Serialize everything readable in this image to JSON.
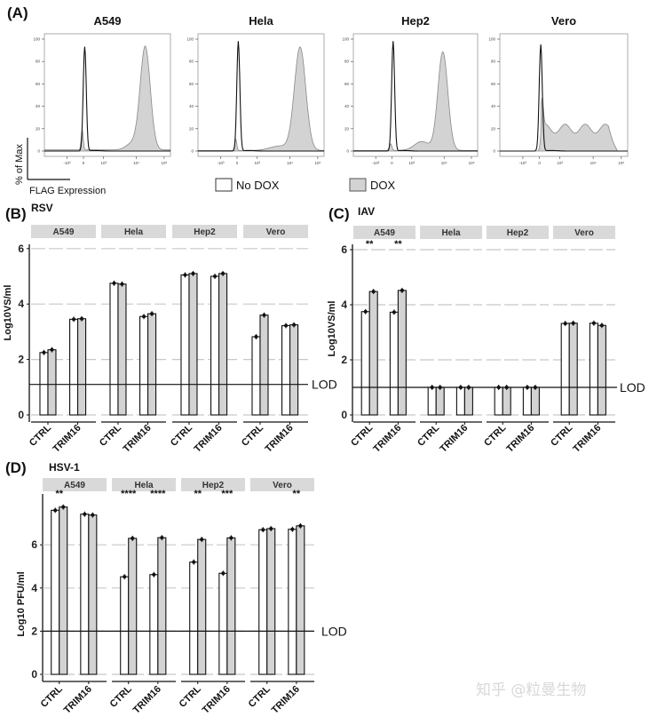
{
  "panel_a": {
    "letter": "(A)",
    "y_axis_label": "% of Max",
    "x_axis_label": "FLAG Expression",
    "legend": [
      {
        "label": "No DOX",
        "fill": "#ffffff"
      },
      {
        "label": "DOX",
        "fill": "#d3d3d3"
      }
    ],
    "y_ticks": [
      "0",
      "20",
      "40",
      "60",
      "80",
      "100"
    ],
    "x_ticks": [
      "-10³",
      "0",
      "10³",
      "10⁴",
      "10⁵"
    ]
  },
  "panel_b": {
    "letter": "(B)",
    "virus": "RSV",
    "lod_label": "LOD"
  },
  "panel_c": {
    "letter": "(C)",
    "virus": "IAV",
    "lod_label": "LOD"
  },
  "panel_d": {
    "letter": "(D)",
    "virus": "HSV-1",
    "lod_label": "LOD"
  },
  "watermark": "知乎 @粒曼生物",
  "colors": {
    "nodox": "#ffffff",
    "dox": "#d3d3d3",
    "strip": "#d9d9d9",
    "grid": "#c8c8c8"
  },
  "chart_data": [
    {
      "type": "area",
      "title": "A549",
      "xlabel": "FLAG Expression",
      "ylabel": "% of Max",
      "ylim": [
        0,
        100
      ],
      "x_scale": "biexponential",
      "series": [
        {
          "name": "No DOX",
          "peaks": [
            {
              "x": "0",
              "y": 93
            }
          ]
        },
        {
          "name": "DOX",
          "peaks": [
            {
              "x": "~3x10^4",
              "y": 95
            }
          ],
          "minor": [
            {
              "x": "0",
              "y": 18
            }
          ]
        }
      ]
    },
    {
      "type": "area",
      "title": "Hela",
      "ylim": [
        0,
        100
      ],
      "series": [
        {
          "name": "No DOX",
          "peaks": [
            {
              "x": "0",
              "y": 98
            }
          ]
        },
        {
          "name": "DOX",
          "peaks": [
            {
              "x": "~3x10^4",
              "y": 93
            }
          ],
          "minor": [
            {
              "x": "0",
              "y": 10
            }
          ]
        }
      ]
    },
    {
      "type": "area",
      "title": "Hep2",
      "ylim": [
        0,
        100
      ],
      "series": [
        {
          "name": "No DOX",
          "peaks": [
            {
              "x": "0",
              "y": 98
            }
          ]
        },
        {
          "name": "DOX",
          "peaks": [
            {
              "x": "~1x10^4",
              "y": 90
            }
          ],
          "minor": [
            {
              "x": "0",
              "y": 6
            }
          ]
        }
      ]
    },
    {
      "type": "area",
      "title": "Vero",
      "ylim": [
        0,
        100
      ],
      "series": [
        {
          "name": "No DOX",
          "peaks": [
            {
              "x": "0",
              "y": 95
            }
          ]
        },
        {
          "name": "DOX",
          "plateau": [
            {
              "x": "10^2-10^4.5",
              "y": 20
            }
          ],
          "max": 25
        }
      ]
    },
    {
      "type": "bar",
      "title": "RSV",
      "ylabel": "Log10VS/ml",
      "ylim": [
        0,
        6
      ],
      "yticks": [
        0,
        2,
        4,
        6
      ],
      "lod": 1.1,
      "facets": [
        "A549",
        "Hela",
        "Hep2",
        "Vero"
      ],
      "categories": [
        "CTRL",
        "TRIM16"
      ],
      "series": [
        {
          "name": "No DOX",
          "values": {
            "A549": [
              2.25,
              3.45
            ],
            "Hela": [
              4.75,
              3.55
            ],
            "Hep2": [
              5.05,
              5.0
            ],
            "Vero": [
              2.82,
              3.22
            ]
          }
        },
        {
          "name": "DOX",
          "values": {
            "A549": [
              2.35,
              3.47
            ],
            "Hela": [
              4.72,
              3.65
            ],
            "Hep2": [
              5.1,
              5.1
            ],
            "Vero": [
              3.6,
              3.25
            ]
          }
        }
      ],
      "significance": {}
    },
    {
      "type": "bar",
      "title": "IAV",
      "ylabel": "Log10VS/ml",
      "ylim": [
        0,
        6
      ],
      "yticks": [
        0,
        2,
        4,
        6
      ],
      "lod": 1.0,
      "facets": [
        "A549",
        "Hela",
        "Hep2",
        "Vero"
      ],
      "categories": [
        "CTRL",
        "TRIM16"
      ],
      "series": [
        {
          "name": "No DOX",
          "values": {
            "A549": [
              3.75,
              3.73
            ],
            "Hela": [
              1.0,
              1.0
            ],
            "Hep2": [
              1.0,
              1.0
            ],
            "Vero": [
              3.32,
              3.33
            ]
          }
        },
        {
          "name": "DOX",
          "values": {
            "A549": [
              4.48,
              4.52
            ],
            "Hela": [
              1.0,
              1.0
            ],
            "Hep2": [
              1.0,
              1.0
            ],
            "Vero": [
              3.33,
              3.25
            ]
          }
        }
      ],
      "significance": {
        "A549": [
          "**",
          "**"
        ],
        "Hela": [
          "",
          ""
        ],
        "Hep2": [
          "",
          ""
        ],
        "Vero": [
          "",
          ""
        ]
      }
    },
    {
      "type": "bar",
      "title": "HSV-1",
      "ylabel": "Log10 PFU/ml",
      "ylim": [
        0,
        8
      ],
      "yticks": [
        0,
        2,
        4,
        6
      ],
      "lod": 2.0,
      "facets": [
        "A549",
        "Hela",
        "Hep2",
        "Vero"
      ],
      "categories": [
        "CTRL",
        "TRIM16"
      ],
      "series": [
        {
          "name": "No DOX",
          "values": {
            "A549": [
              7.6,
              7.42
            ],
            "Hela": [
              4.52,
              4.62
            ],
            "Hep2": [
              5.2,
              4.68
            ],
            "Vero": [
              6.7,
              6.72
            ]
          }
        },
        {
          "name": "DOX",
          "values": {
            "A549": [
              7.75,
              7.38
            ],
            "Hela": [
              6.3,
              6.33
            ],
            "Hep2": [
              6.25,
              6.32
            ],
            "Vero": [
              6.75,
              6.88
            ]
          }
        }
      ],
      "significance": {
        "A549": [
          "**",
          ""
        ],
        "Hela": [
          "****",
          "****"
        ],
        "Hep2": [
          "**",
          "***"
        ],
        "Vero": [
          "",
          "**"
        ]
      }
    }
  ]
}
